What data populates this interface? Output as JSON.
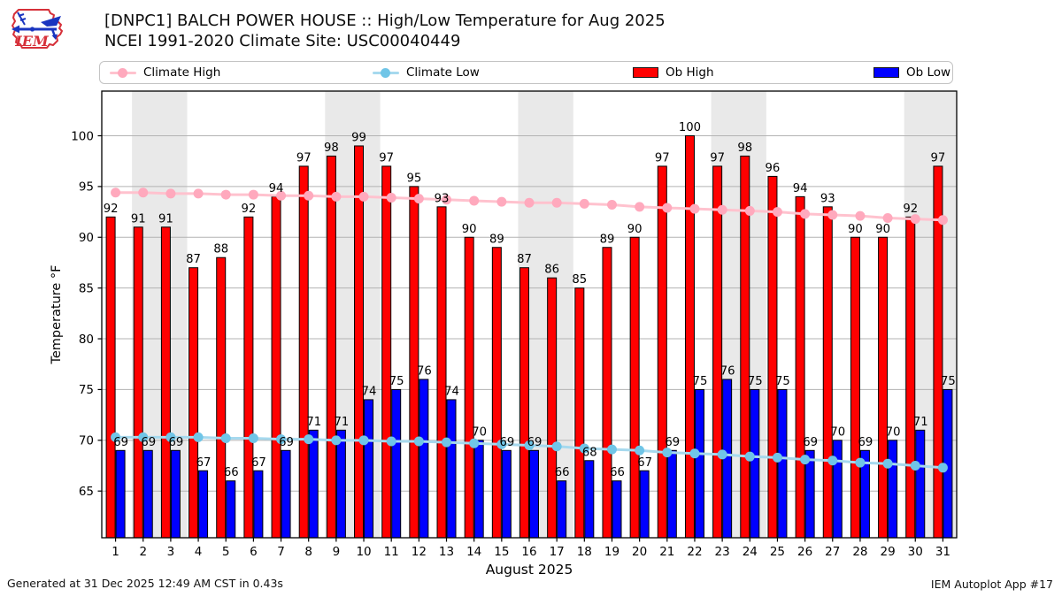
{
  "logo": {
    "text": "IEM"
  },
  "header": {
    "title_line1": "[DNPC1] BALCH POWER HOUSE :: High/Low Temperature for Aug 2025",
    "title_line2": "NCEI 1991-2020 Climate Site: USC00040449"
  },
  "legend": {
    "items": [
      {
        "label": "Climate High",
        "swatch": "line",
        "line_color": "#ffc2ce",
        "marker_color": "#ffa9bd"
      },
      {
        "label": "Climate Low",
        "swatch": "line",
        "line_color": "#a6d9ee",
        "marker_color": "#70c5e7"
      },
      {
        "label": "Ob High",
        "swatch": "patch",
        "color": "#ff0000"
      },
      {
        "label": "Ob Low",
        "swatch": "patch",
        "color": "#0000ff"
      }
    ]
  },
  "footer": {
    "generated": "Generated at 31 Dec 2025 12:49 AM CST in 0.43s",
    "app": "IEM Autoplot App #17"
  },
  "chart_data": {
    "type": "bar",
    "title": "[DNPC1] BALCH POWER HOUSE :: High/Low Temperature for Aug 2025",
    "subtitle": "NCEI 1991-2020 Climate Site: USC00040449",
    "xlabel": "August 2025",
    "ylabel": "Temperature °F",
    "categories": [
      1,
      2,
      3,
      4,
      5,
      6,
      7,
      8,
      9,
      10,
      11,
      12,
      13,
      14,
      15,
      16,
      17,
      18,
      19,
      20,
      21,
      22,
      23,
      24,
      25,
      26,
      27,
      28,
      29,
      30,
      31
    ],
    "yticks": [
      65,
      70,
      75,
      80,
      85,
      90,
      95,
      100
    ],
    "ylim": [
      60.4,
      104.4
    ],
    "grid": true,
    "legend_position": "top",
    "band_color": "#e9e9e9",
    "weekend_bands": [
      [
        2,
        3
      ],
      [
        9,
        10
      ],
      [
        16,
        17
      ],
      [
        23,
        24
      ],
      [
        30,
        31
      ]
    ],
    "series": [
      {
        "name": "Ob High",
        "type": "bar",
        "color": "#ff0000",
        "values": [
          92,
          91,
          91,
          87,
          88,
          92,
          94,
          97,
          98,
          99,
          97,
          95,
          93,
          90,
          89,
          87,
          86,
          85,
          89,
          90,
          97,
          100,
          97,
          98,
          96,
          94,
          93,
          90,
          90,
          92,
          97
        ]
      },
      {
        "name": "Ob Low",
        "type": "bar",
        "color": "#0000ff",
        "values": [
          69,
          69,
          69,
          67,
          66,
          67,
          69,
          71,
          71,
          74,
          75,
          76,
          74,
          70,
          69,
          69,
          66,
          68,
          66,
          67,
          69,
          75,
          76,
          75,
          75,
          69,
          70,
          69,
          70,
          71,
          75
        ]
      },
      {
        "name": "Climate High",
        "type": "line",
        "line_color": "#ffc2ce",
        "marker_color": "#ffa9bd",
        "values": [
          94.4,
          94.4,
          94.3,
          94.3,
          94.2,
          94.2,
          94.1,
          94.1,
          94.0,
          94.0,
          93.9,
          93.8,
          93.7,
          93.6,
          93.5,
          93.4,
          93.4,
          93.3,
          93.2,
          93.0,
          92.9,
          92.8,
          92.7,
          92.6,
          92.5,
          92.3,
          92.2,
          92.1,
          91.9,
          91.8,
          91.7
        ]
      },
      {
        "name": "Climate Low",
        "type": "line",
        "line_color": "#a6d9ee",
        "marker_color": "#70c5e7",
        "values": [
          70.3,
          70.3,
          70.3,
          70.3,
          70.2,
          70.2,
          70.1,
          70.1,
          70.0,
          70.0,
          69.9,
          69.9,
          69.8,
          69.7,
          69.6,
          69.5,
          69.4,
          69.2,
          69.1,
          69.0,
          68.8,
          68.7,
          68.6,
          68.4,
          68.3,
          68.1,
          68.0,
          67.8,
          67.7,
          67.5,
          67.3
        ]
      }
    ]
  }
}
